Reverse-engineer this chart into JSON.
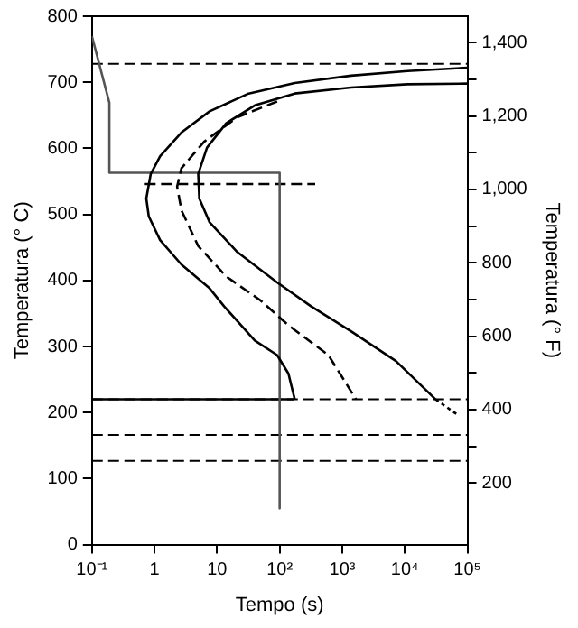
{
  "chart_data": {
    "type": "line",
    "xlabel": "Tempo (s)",
    "ylabel": "Temperatura (° C)",
    "y2label": "Temperatura (° F)",
    "log": "x",
    "xlim": [
      0.1,
      100000
    ],
    "xticks": [
      {
        "value": 0.1,
        "label": "10⁻¹"
      },
      1,
      10,
      {
        "value": 100,
        "label": "10²"
      },
      {
        "value": 1000,
        "label": "10³"
      },
      {
        "value": 10000,
        "label": "10⁴"
      },
      {
        "value": 100000,
        "label": "10⁵"
      }
    ],
    "ylim": [
      0,
      800
    ],
    "yticks": [
      0,
      100,
      200,
      300,
      400,
      500,
      600,
      700,
      800
    ],
    "y2lim": [
      32,
      1472
    ],
    "y2ticks": [
      {
        "value": 200,
        "label": "200"
      },
      {
        "value": 300,
        "label": null
      },
      {
        "value": 400,
        "label": "400"
      },
      {
        "value": 500,
        "label": null
      },
      {
        "value": 600,
        "label": "600"
      },
      {
        "value": 700,
        "label": null
      },
      {
        "value": 800,
        "label": "800"
      },
      {
        "value": 900,
        "label": null
      },
      {
        "value": 1000,
        "label": "1,000"
      },
      {
        "value": 1100,
        "label": null
      },
      {
        "value": 1200,
        "label": "1,200"
      },
      {
        "value": 1300,
        "label": null
      },
      {
        "value": 1400,
        "label": "1,400"
      }
    ],
    "grid": false,
    "legend": false,
    "marker": "none",
    "series": [
      {
        "color": "#000000",
        "line_style": "solid",
        "x": [
          100000,
          11000,
          1380,
          174,
          32,
          7.6,
          2.7,
          1.23,
          0.87,
          0.74,
          0.81,
          1.23,
          2.7,
          7.6,
          12.9,
          40,
          91,
          138,
          174
        ],
        "values": [
          722,
          717,
          710,
          699,
          683,
          656,
          624,
          588,
          561,
          524,
          497,
          461,
          424,
          388,
          361,
          309,
          287,
          259,
          220
        ]
      },
      {
        "color": "#000000",
        "line_style": "dashed",
        "x": [
          91,
          21,
          6.2,
          2.7,
          2.3,
          2.7,
          5,
          14,
          49,
          138,
          600,
          1660
        ],
        "values": [
          671,
          647,
          610,
          570,
          542,
          506,
          452,
          406,
          370,
          332,
          287,
          220
        ]
      },
      {
        "color": "#000000",
        "line_style": "solid",
        "x": [
          100000,
          11000,
          1380,
          174,
          40,
          14,
          6.9,
          5,
          5.2,
          7.6,
          21,
          91,
          316,
          1380,
          7200,
          31000
        ],
        "values": [
          698,
          697,
          692,
          683,
          665,
          638,
          601,
          561,
          524,
          488,
          443,
          397,
          361,
          323,
          278,
          220
        ]
      },
      {
        "color": "#000000",
        "line_style": "dotted",
        "x": [
          31000,
          71000
        ],
        "values": [
          220,
          196
        ]
      },
      {
        "color": "#555555",
        "line_style": "solid",
        "x": [
          0.1,
          0.19,
          0.19,
          100,
          100
        ],
        "values": [
          770,
          669,
          563,
          563,
          55
        ]
      },
      {
        "color": "#000000",
        "line_style": "solid",
        "x": [
          0.1,
          172
        ],
        "values": [
          220,
          220
        ]
      },
      {
        "color": "#000000",
        "line_style": "dashed",
        "x": [
          0.7,
          370
        ],
        "values": [
          546,
          546
        ]
      }
    ],
    "ref_lines": [
      {
        "axis": "y",
        "value": 728,
        "line_style": "dashed",
        "color": "#000000"
      },
      {
        "axis": "y",
        "value": 220,
        "line_style": "dashed",
        "color": "#000000"
      },
      {
        "axis": "y",
        "value": 166,
        "line_style": "dashed",
        "color": "#000000"
      },
      {
        "axis": "y",
        "value": 127,
        "line_style": "dashed",
        "color": "#000000"
      }
    ]
  }
}
